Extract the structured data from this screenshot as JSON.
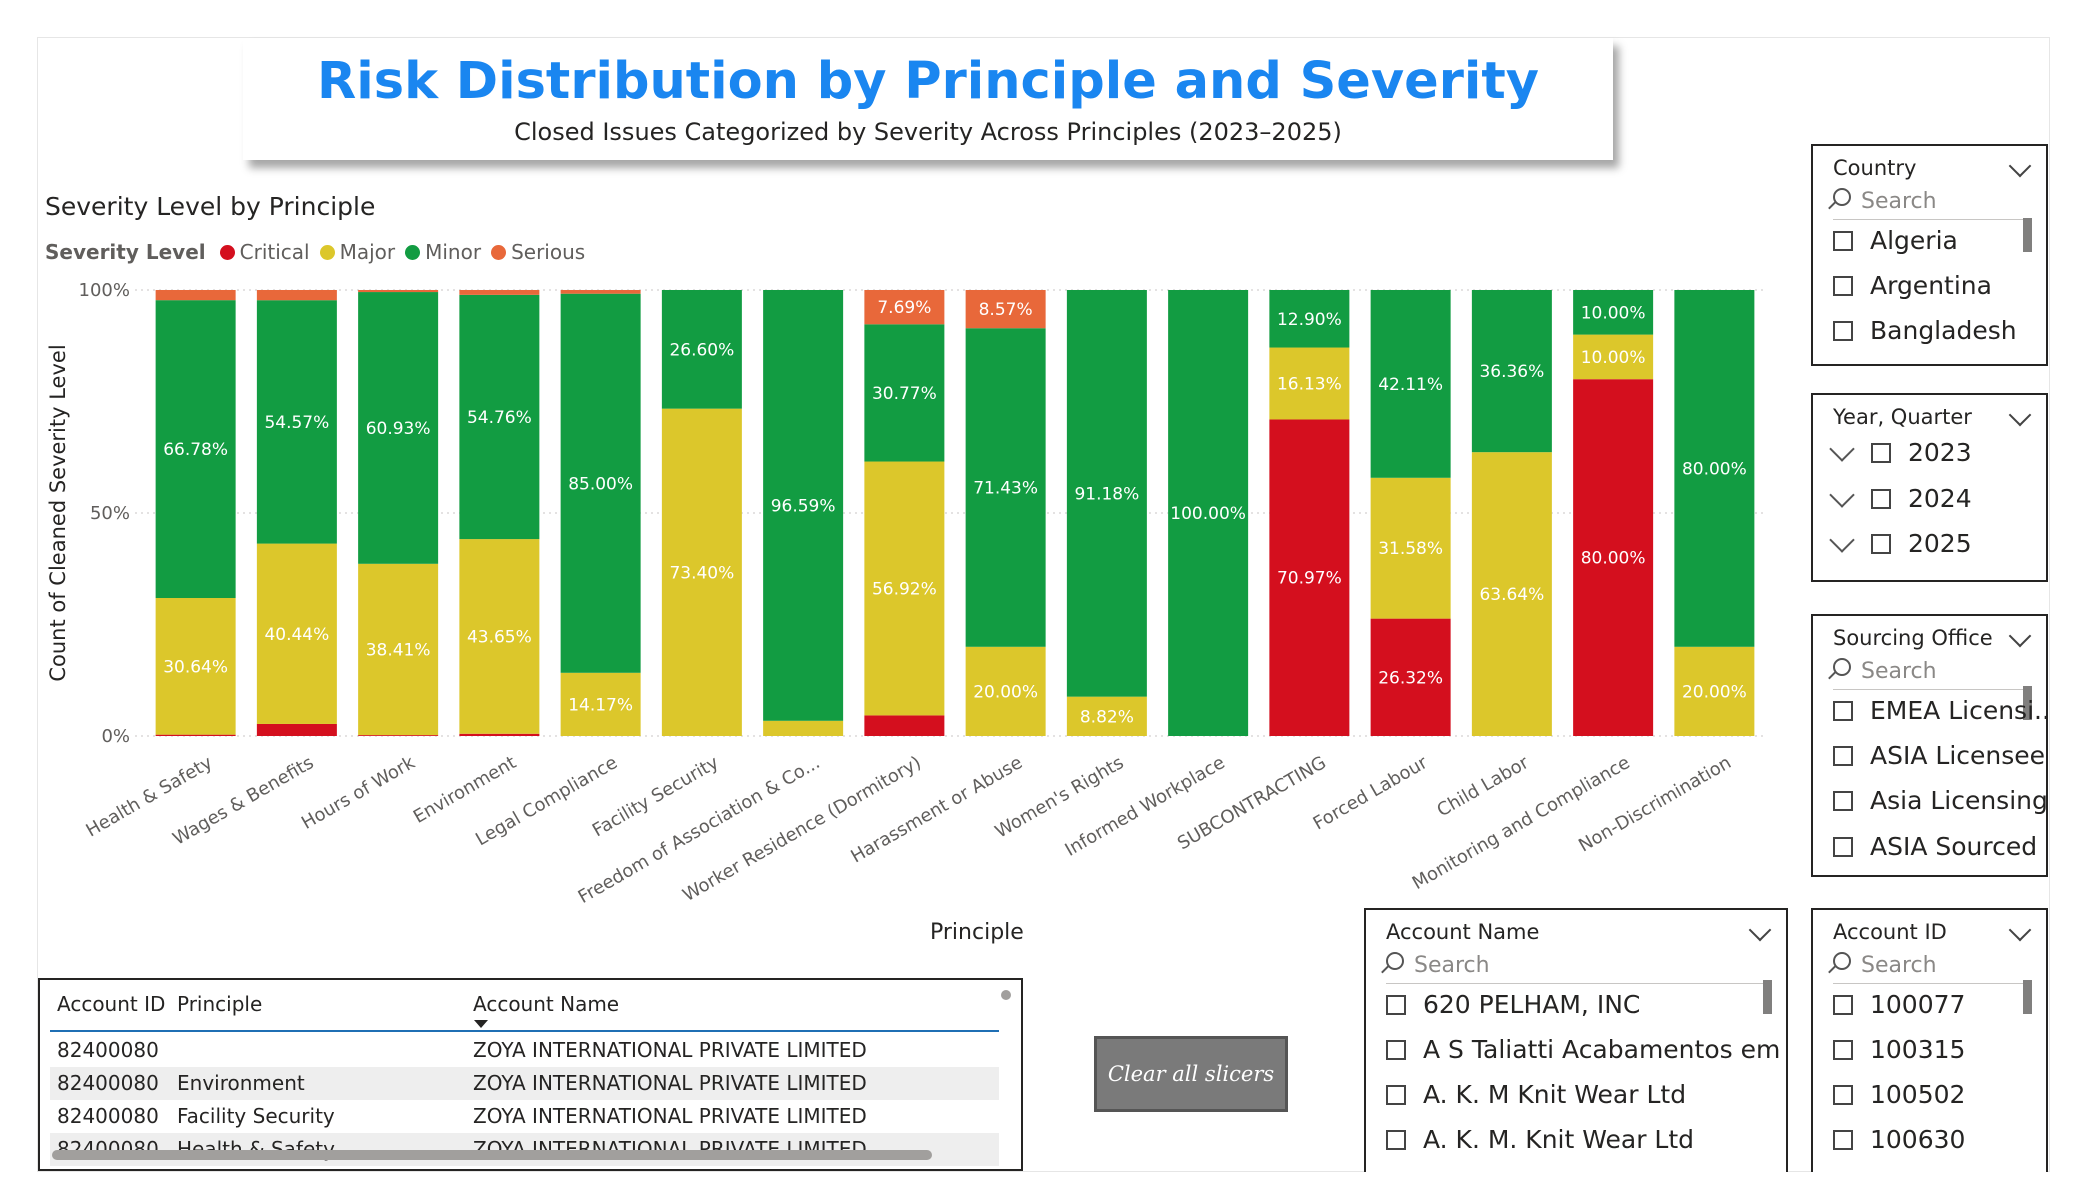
{
  "header": {
    "title": "Risk Distribution by Principle and Severity",
    "subtitle": "Closed Issues Categorized by Severity Across Principles (2023–2025)"
  },
  "colors": {
    "critical": "#d40f1e",
    "major": "#dcc72b",
    "minor": "#129c42",
    "serious": "#e8683a",
    "title_blue": "#1a86f0"
  },
  "chart_data": {
    "type": "bar",
    "stacked": "100%",
    "title": "Severity Level by Principle",
    "legend_title": "Severity Level",
    "legend_position": "top-left",
    "xlabel": "Principle",
    "ylabel": "Count of Cleaned Severity Level",
    "ylim": [
      0,
      100
    ],
    "yticks": [
      "0%",
      "50%",
      "100%"
    ],
    "categories": [
      "Health & Safety",
      "Wages & Benefits",
      "Hours of Work",
      "Environment",
      "Legal Compliance",
      "Facility Security",
      "Freedom of Association & Co...",
      "Worker Residence (Dormitory)",
      "Harassment or Abuse",
      "Women's Rights",
      "Informed Workplace",
      "SUBCONTRACTING",
      "Forced Labour",
      "Child Labor",
      "Monitoring and Compliance",
      "Non-Discrimination"
    ],
    "series": [
      {
        "name": "Critical",
        "values": [
          0.3,
          2.7,
          0.2,
          0.5,
          0,
          0,
          0,
          4.62,
          0,
          0,
          0,
          70.97,
          26.32,
          0,
          80.0,
          0
        ],
        "labels": [
          "",
          "",
          "",
          "",
          "",
          "",
          "",
          "",
          "",
          "",
          "",
          "70.97%",
          "26.32%",
          "",
          "80.00%",
          ""
        ]
      },
      {
        "name": "Major",
        "values": [
          30.64,
          40.44,
          38.41,
          43.65,
          14.17,
          73.4,
          3.41,
          56.92,
          20.0,
          8.82,
          0,
          16.13,
          31.58,
          63.64,
          10.0,
          20.0
        ],
        "labels": [
          "30.64%",
          "40.44%",
          "38.41%",
          "43.65%",
          "14.17%",
          "73.40%",
          "",
          "56.92%",
          "20.00%",
          "8.82%",
          "",
          "16.13%",
          "31.58%",
          "63.64%",
          "10.00%",
          "20.00%"
        ]
      },
      {
        "name": "Minor",
        "values": [
          66.78,
          54.57,
          60.93,
          54.76,
          85.0,
          26.6,
          96.59,
          30.77,
          71.43,
          91.18,
          100.0,
          12.9,
          42.11,
          36.36,
          10.0,
          80.0
        ],
        "labels": [
          "66.78%",
          "54.57%",
          "60.93%",
          "54.76%",
          "85.00%",
          "26.60%",
          "96.59%",
          "30.77%",
          "71.43%",
          "91.18%",
          "100.00%",
          "12.90%",
          "42.11%",
          "36.36%",
          "10.00%",
          "80.00%"
        ]
      },
      {
        "name": "Serious",
        "values": [
          2.28,
          2.29,
          0.46,
          1.09,
          0.83,
          0,
          0,
          7.69,
          8.57,
          0,
          0,
          0,
          0,
          0,
          0,
          0
        ],
        "labels": [
          "",
          "",
          "",
          "",
          "",
          "",
          "",
          "7.69%",
          "8.57%",
          "",
          "",
          "",
          "",
          "",
          "",
          ""
        ]
      }
    ]
  },
  "slicers": {
    "country": {
      "title": "Country",
      "placeholder": "Search",
      "items": [
        "Algeria",
        "Argentina",
        "Bangladesh"
      ]
    },
    "year_quarter": {
      "title": "Year, Quarter",
      "items": [
        "2023",
        "2024",
        "2025"
      ]
    },
    "sourcing_office": {
      "title": "Sourcing Office",
      "placeholder": "Search",
      "items": [
        "EMEA Licensi...",
        "ASIA Licensee",
        "Asia Licensing",
        "ASIA Sourced"
      ]
    },
    "account_name": {
      "title": "Account Name",
      "placeholder": "Search",
      "items": [
        "620 PELHAM, INC",
        "A S Taliatti Acabamentos em ...",
        "A. K. M Knit Wear Ltd",
        "A. K. M. Knit Wear Ltd"
      ]
    },
    "account_id": {
      "title": "Account ID",
      "placeholder": "Search",
      "items": [
        "100077",
        "100315",
        "100502",
        "100630"
      ]
    }
  },
  "table": {
    "columns": [
      "Account ID",
      "Principle",
      "Account Name"
    ],
    "rows": [
      [
        "82400080",
        "",
        "ZOYA INTERNATIONAL PRIVATE LIMITED"
      ],
      [
        "82400080",
        "Environment",
        "ZOYA INTERNATIONAL PRIVATE LIMITED"
      ],
      [
        "82400080",
        "Facility Security",
        "ZOYA INTERNATIONAL PRIVATE LIMITED"
      ],
      [
        "82400080",
        "Health & Safety",
        "ZOYA INTERNATIONAL PRIVATE LIMITED"
      ]
    ]
  },
  "clear_button": {
    "label": "Clear all slicers"
  }
}
